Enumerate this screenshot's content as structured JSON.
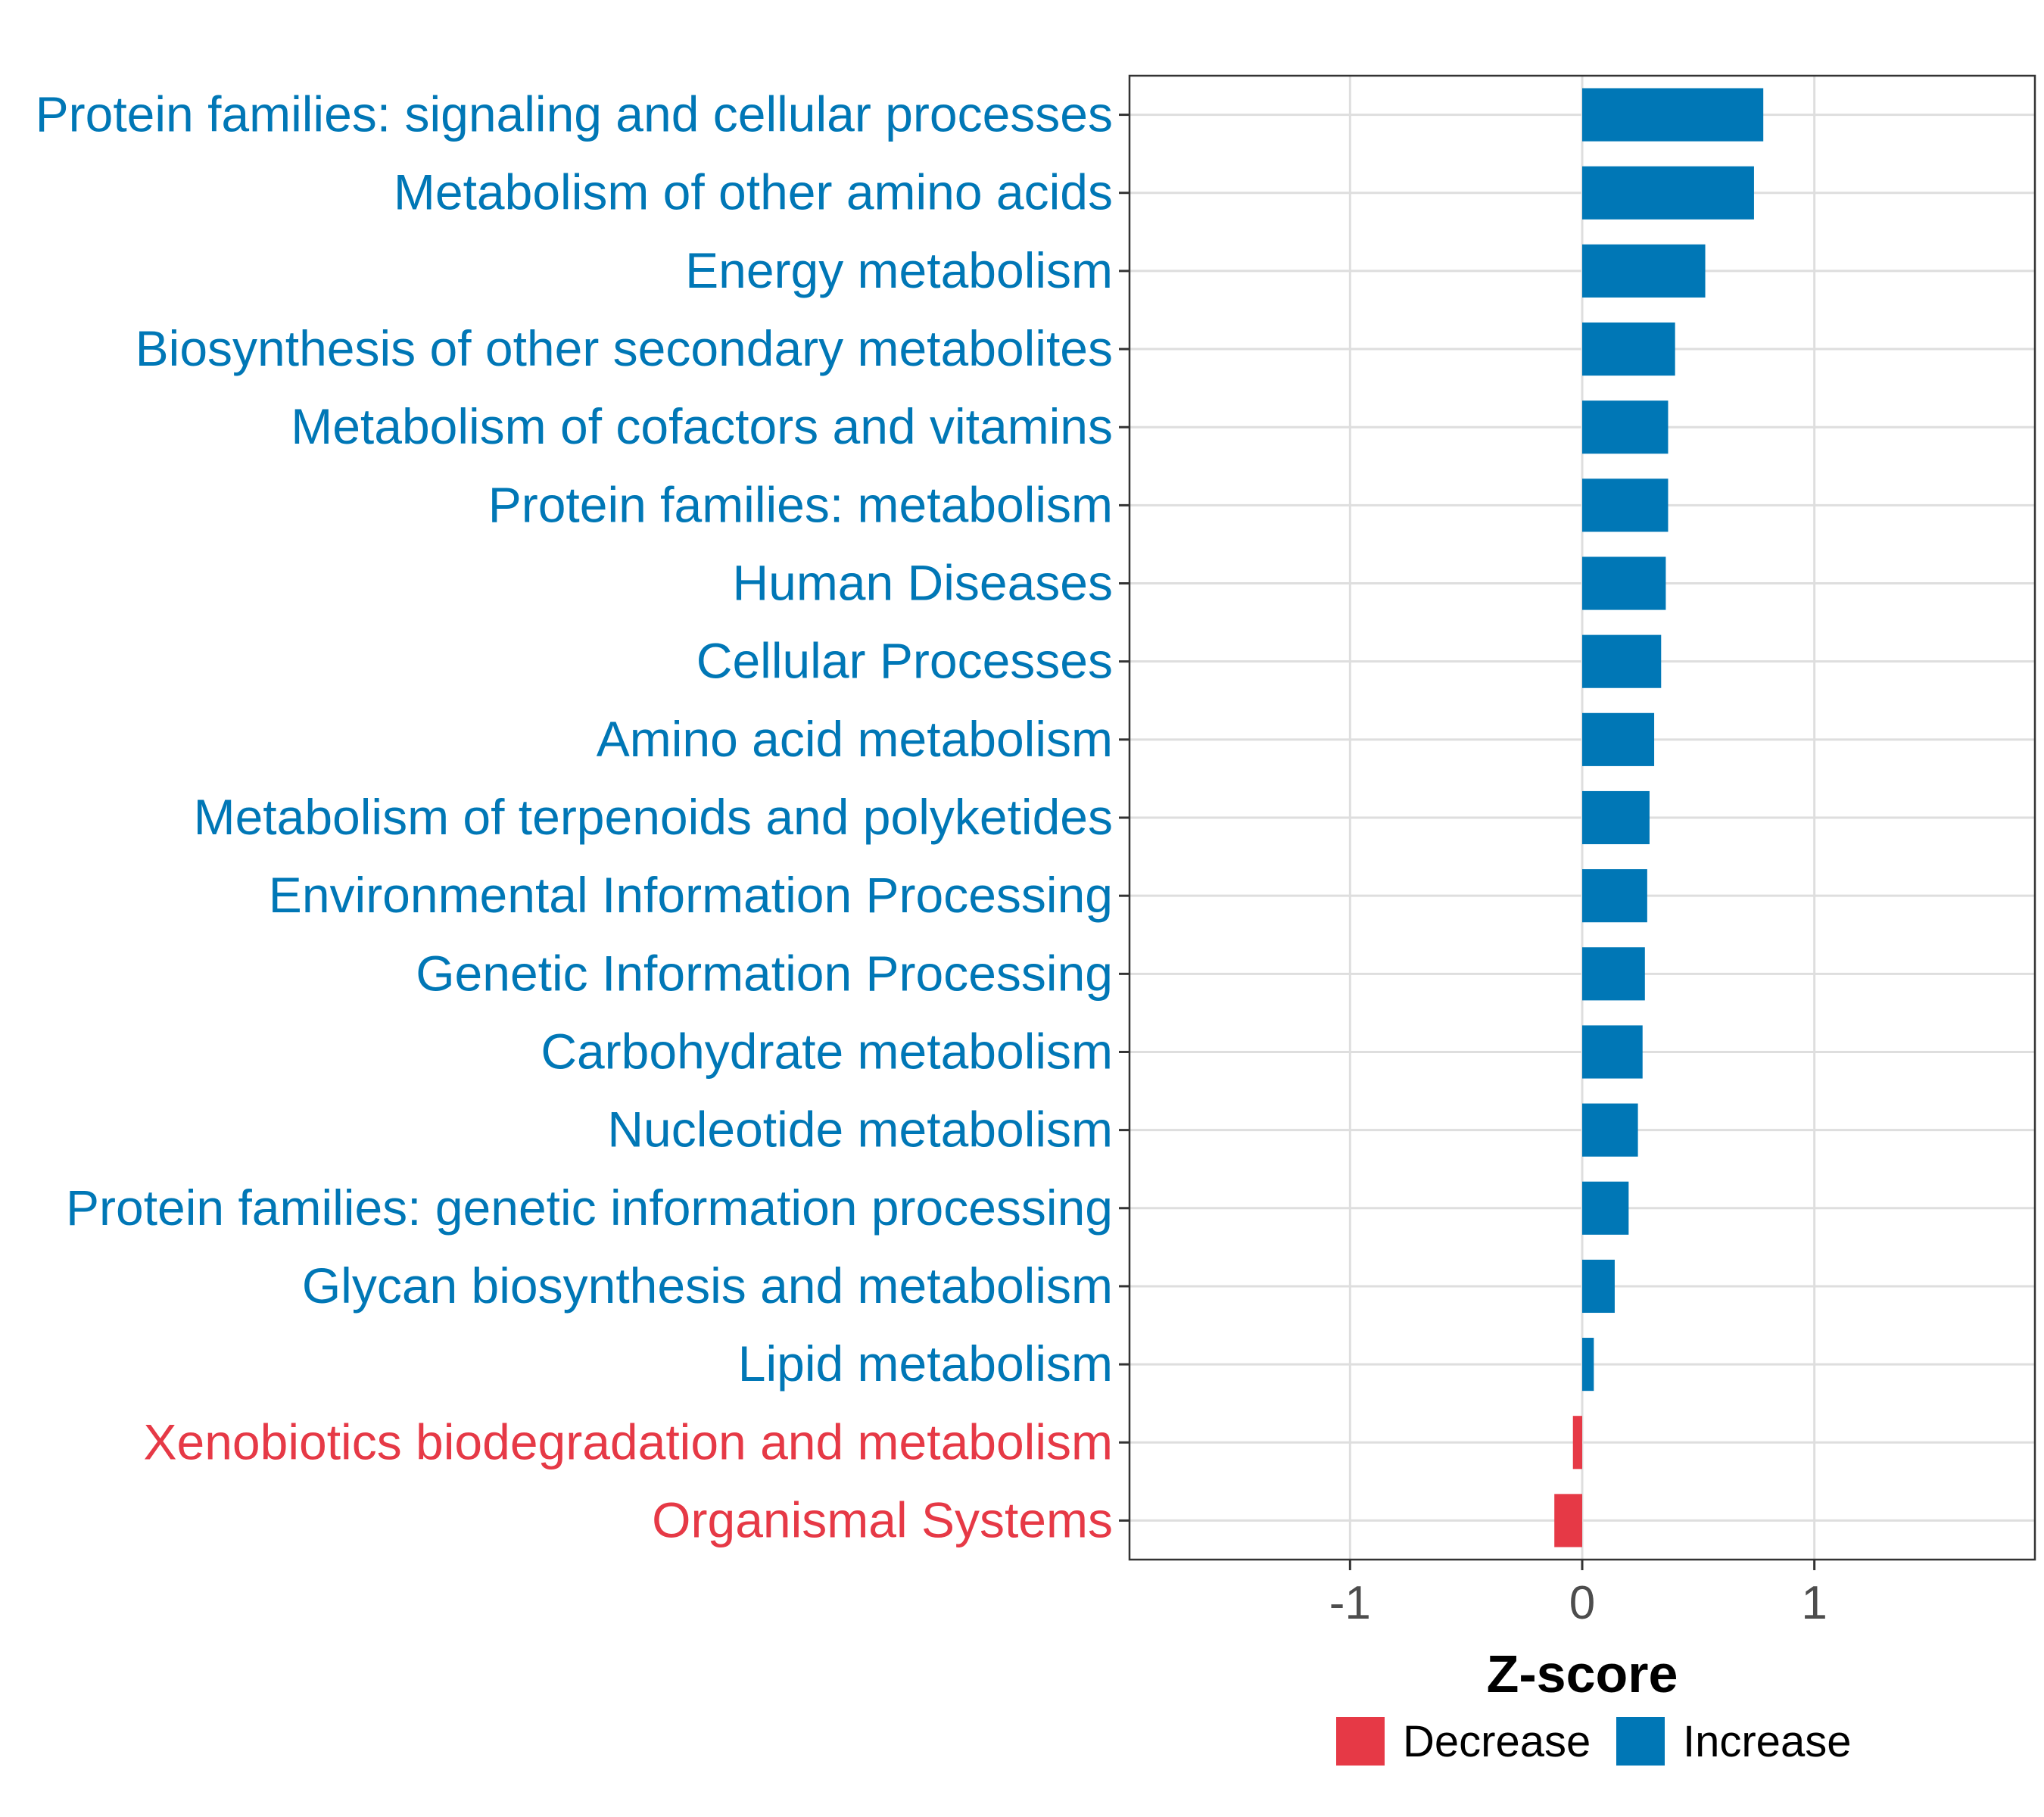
{
  "chart_data": {
    "type": "bar",
    "orientation": "horizontal",
    "categories": [
      "Protein families: signaling and cellular processes",
      "Metabolism of other amino acids",
      "Energy metabolism",
      "Biosynthesis of other secondary metabolites",
      "Metabolism of cofactors and vitamins",
      "Protein families: metabolism",
      "Human Diseases",
      "Cellular Processes",
      "Amino acid metabolism",
      "Metabolism of terpenoids and polyketides",
      "Environmental Information Processing",
      "Genetic Information Processing",
      "Carbohydrate metabolism",
      "Nucleotide metabolism",
      "Protein families: genetic information processing",
      "Glycan biosynthesis and metabolism",
      "Lipid metabolism",
      "Xenobiotics biodegradation and metabolism",
      "Organismal Systems"
    ],
    "values": [
      0.78,
      0.74,
      0.53,
      0.4,
      0.37,
      0.37,
      0.36,
      0.34,
      0.31,
      0.29,
      0.28,
      0.27,
      0.26,
      0.24,
      0.2,
      0.14,
      0.05,
      -0.04,
      -0.12
    ],
    "groups": [
      "Increase",
      "Increase",
      "Increase",
      "Increase",
      "Increase",
      "Increase",
      "Increase",
      "Increase",
      "Increase",
      "Increase",
      "Increase",
      "Increase",
      "Increase",
      "Increase",
      "Increase",
      "Increase",
      "Increase",
      "Decrease",
      "Decrease"
    ],
    "xlabel": "Z-score",
    "ylabel": "",
    "xlim": [
      -1.95,
      1.95
    ],
    "xticks": [
      -1,
      0,
      1
    ],
    "xtick_labels": [
      "-1",
      "0",
      "1"
    ],
    "grid": true,
    "legend": {
      "position": "bottom",
      "entries": [
        {
          "label": "Decrease",
          "color": "#e63946"
        },
        {
          "label": "Increase",
          "color": "#0077b6"
        }
      ]
    },
    "colors": {
      "Increase": "#0077b6",
      "Decrease": "#e63946"
    }
  }
}
